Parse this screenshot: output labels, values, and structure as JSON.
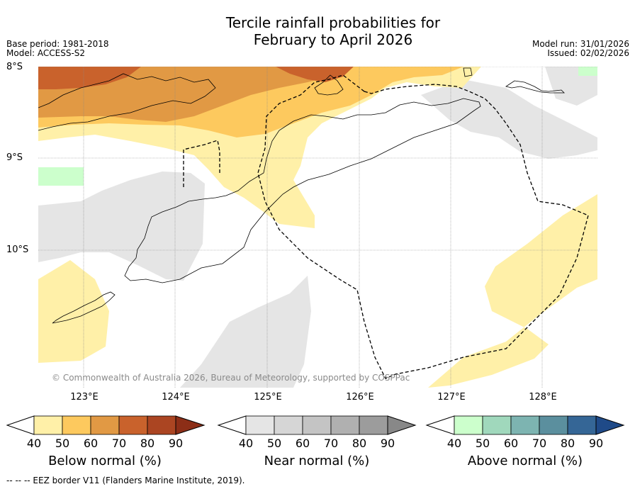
{
  "title": {
    "line1": "Tercile rainfall probabilities for",
    "line2": "February to April 2026"
  },
  "meta_left": {
    "base_period": "Base period: 1981-2018",
    "model": "Model: ACCESS-S2"
  },
  "meta_right": {
    "model_run": "Model run: 31/01/2026",
    "issued": "Issued: 02/02/2026"
  },
  "map": {
    "lat_labels": [
      "8°S",
      "9°S",
      "10°S"
    ],
    "lon_labels": [
      "123°E",
      "124°E",
      "125°E",
      "126°E",
      "127°E",
      "128°E"
    ],
    "credit": "© Commonwealth of Australia 2026, Bureau of Meteorology, supported by COSPPac",
    "colors": {
      "below_50": "#fff0a8",
      "below_60": "#fdc95e",
      "below_70": "#e19944",
      "below_80": "#c9622c",
      "near_50": "#e5e5e5",
      "above_50": "#ccffcc"
    }
  },
  "legends": [
    {
      "title": "Below normal (%)",
      "ticks": [
        "40",
        "50",
        "60",
        "70",
        "80",
        "90"
      ],
      "colors": [
        "#fff0a8",
        "#fdc95e",
        "#e19944",
        "#c9622c",
        "#ab4522",
        "#8c2e17"
      ]
    },
    {
      "title": "Near normal (%)",
      "ticks": [
        "40",
        "50",
        "60",
        "70",
        "80",
        "90"
      ],
      "colors": [
        "#e5e5e5",
        "#d6d6d6",
        "#c4c4c4",
        "#b0b0b0",
        "#9c9c9c",
        "#888888"
      ]
    },
    {
      "title": "Above normal (%)",
      "ticks": [
        "40",
        "50",
        "60",
        "70",
        "80",
        "90"
      ],
      "colors": [
        "#ccffcc",
        "#a0d8bc",
        "#7db4b1",
        "#5b8f9e",
        "#356696",
        "#1f4a88"
      ]
    }
  ],
  "footer": "--  --  -- EEZ border V11 (Flanders Marine Institute, 2019)."
}
